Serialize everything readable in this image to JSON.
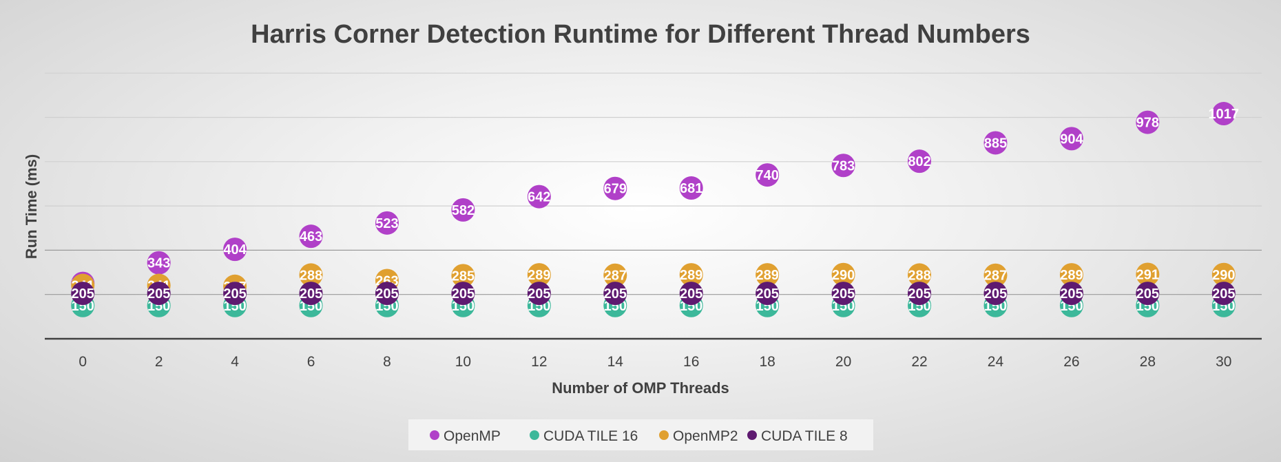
{
  "chart_data": {
    "type": "scatter",
    "title": "Harris Corner Detection Runtime for Different Thread Numbers",
    "xlabel": "Number of OMP Threads",
    "ylabel": "Run Time (ms)",
    "x": [
      0,
      2,
      4,
      6,
      8,
      10,
      12,
      14,
      16,
      18,
      20,
      22,
      24,
      26,
      28,
      30
    ],
    "xlim": [
      -1,
      31
    ],
    "ylim": [
      0,
      1200
    ],
    "grid": true,
    "legend_position": "bottom",
    "series": [
      {
        "name": "OpenMP",
        "color": "#b040c8",
        "values": [
          250,
          343,
          404,
          463,
          523,
          582,
          642,
          679,
          681,
          740,
          783,
          802,
          885,
          904,
          978,
          1017
        ]
      },
      {
        "name": "CUDA TILE 16",
        "color": "#3cb89a",
        "values": [
          150,
          150,
          150,
          150,
          150,
          150,
          150,
          150,
          150,
          150,
          150,
          150,
          150,
          150,
          150,
          150
        ]
      },
      {
        "name": "OpenMP2",
        "color": "#e0a030",
        "values": [
          241,
          241,
          237,
          288,
          263,
          285,
          289,
          287,
          289,
          289,
          290,
          288,
          287,
          289,
          291,
          290
        ]
      },
      {
        "name": "CUDA TILE 8",
        "color": "#5e1a70",
        "values": [
          205,
          205,
          205,
          205,
          205,
          205,
          205,
          205,
          205,
          205,
          205,
          205,
          205,
          205,
          205,
          205
        ]
      }
    ]
  }
}
